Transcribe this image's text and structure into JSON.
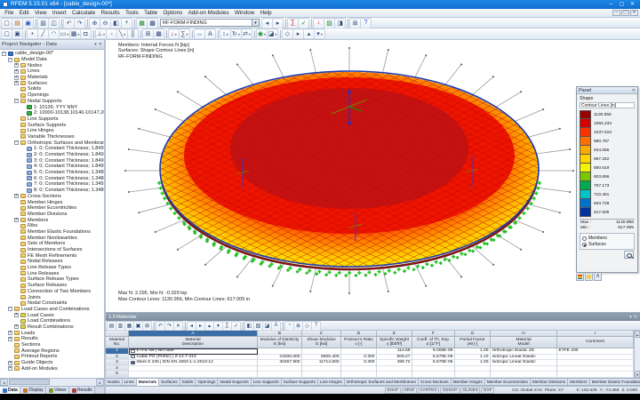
{
  "window": {
    "title": "RFEM 5.15.01 x64 - [cable_design-00*]"
  },
  "menu": [
    "File",
    "Edit",
    "View",
    "Insert",
    "Calculate",
    "Results",
    "Tools",
    "Table",
    "Options",
    "Add-on Modules",
    "Window",
    "Help"
  ],
  "toolbar": {
    "combo_value": "RF-FORM-FINDING",
    "row1_left": [
      {
        "n": "new-file-icon",
        "g": "▢"
      },
      {
        "n": "open-file-icon",
        "g": "▤",
        "c": "warm"
      },
      {
        "n": "save-icon",
        "g": "▣",
        "c": "blue"
      },
      {
        "sep": true
      },
      {
        "n": "print-icon",
        "g": "▥"
      },
      {
        "n": "print-preview-icon",
        "g": "◫"
      },
      {
        "sep": true
      },
      {
        "n": "undo-icon",
        "g": "↶"
      },
      {
        "n": "redo-icon",
        "g": "↷"
      },
      {
        "sep": true
      },
      {
        "n": "zoom-in-icon",
        "g": "⊕"
      },
      {
        "n": "zoom-out-icon",
        "g": "⊖"
      },
      {
        "n": "zoom-window-icon",
        "g": "◧"
      },
      {
        "n": "pan-icon",
        "g": "+"
      },
      {
        "sep": true
      },
      {
        "n": "render-icon",
        "g": "▦",
        "c": "green"
      },
      {
        "n": "wireframe-icon",
        "g": "▩"
      }
    ],
    "row1_right": [
      {
        "n": "previous-icon",
        "g": "◂"
      },
      {
        "n": "next-icon",
        "g": "▸"
      },
      {
        "sep": true
      },
      {
        "n": "calculate-all-icon",
        "g": "∑",
        "c": "red"
      },
      {
        "n": "check-icon",
        "g": "✓",
        "c": "green"
      },
      {
        "sep": true
      },
      {
        "n": "loads-icon",
        "g": "↓",
        "c": "red"
      },
      {
        "n": "results-icon",
        "g": "▨",
        "c": "green"
      },
      {
        "n": "panel-toggle-icon",
        "g": "◨"
      },
      {
        "sep": true
      },
      {
        "n": "tables-icon",
        "g": "⊞"
      },
      {
        "n": "help-icon",
        "g": "?",
        "c": "blue"
      }
    ],
    "row2": [
      {
        "n": "select-icon",
        "g": "▢"
      },
      {
        "n": "deselect-icon",
        "g": "▣"
      },
      {
        "sep": true
      },
      {
        "n": "node-icon",
        "g": "•"
      },
      {
        "n": "line-icon",
        "g": "╱"
      },
      {
        "n": "arc-icon",
        "g": "◠"
      },
      {
        "n": "surface-icon",
        "g": "▭",
        "d": true
      },
      {
        "n": "solid-icon",
        "g": "▦",
        "d": true
      },
      {
        "n": "opening-icon",
        "g": "◘"
      },
      {
        "sep": true
      },
      {
        "n": "support-icon",
        "g": "⊥",
        "d": true
      },
      {
        "n": "hinge-icon",
        "g": "◦"
      },
      {
        "n": "member-icon",
        "g": "╲",
        "d": true
      },
      {
        "n": "rib-icon",
        "g": "║"
      },
      {
        "sep": true
      },
      {
        "n": "mesh-icon",
        "g": "⊞"
      },
      {
        "n": "refinement-icon",
        "g": "▦"
      },
      {
        "sep": true
      },
      {
        "n": "load-case-icon",
        "g": "↓",
        "c": "red",
        "d": true
      },
      {
        "n": "combination-icon",
        "g": "∑",
        "d": true
      },
      {
        "sep": true
      },
      {
        "n": "dimension-icon",
        "g": "↔"
      },
      {
        "n": "text-icon",
        "g": "A"
      },
      {
        "sep": true
      },
      {
        "n": "move-icon",
        "g": "↕",
        "d": true
      },
      {
        "n": "rotate-icon",
        "g": "↻",
        "d": true
      },
      {
        "n": "mirror-icon",
        "g": "⇄",
        "d": true
      },
      {
        "sep": true
      },
      {
        "n": "visibility-icon",
        "g": "◉",
        "c": "green",
        "d": true
      },
      {
        "n": "clip-icon",
        "g": "◪",
        "d": true
      },
      {
        "sep": true
      },
      {
        "n": "view-iso-icon",
        "g": "◇"
      },
      {
        "n": "view-x-icon",
        "g": "▸"
      },
      {
        "n": "view-y-icon",
        "g": "▴"
      },
      {
        "n": "view-z-icon",
        "g": "▾",
        "d": true
      }
    ]
  },
  "navigator": {
    "title": "Project Navigator - Data",
    "tabs": [
      {
        "label": "Data",
        "active": true,
        "chip": "#3a73cd"
      },
      {
        "label": "Display",
        "active": false,
        "chip": "#c87a2a"
      },
      {
        "label": "Views",
        "active": false,
        "chip": "#7a9f3a"
      },
      {
        "label": "Results",
        "active": false,
        "chip": "#aa4444"
      }
    ],
    "tree": [
      {
        "lvl": 0,
        "exp": "-",
        "icon": "root",
        "label": "cable_design-00*"
      },
      {
        "lvl": 1,
        "exp": "-",
        "icon": "folder",
        "label": "Model Data"
      },
      {
        "lvl": 2,
        "exp": "+",
        "icon": "folder",
        "label": "Nodes"
      },
      {
        "lvl": 2,
        "exp": "+",
        "icon": "folder",
        "label": "Lines"
      },
      {
        "lvl": 2,
        "exp": "+",
        "icon": "folder",
        "label": "Materials"
      },
      {
        "lvl": 2,
        "exp": "+",
        "icon": "folder",
        "label": "Surfaces"
      },
      {
        "lvl": 2,
        "exp": ".",
        "icon": "folder",
        "label": "Solids"
      },
      {
        "lvl": 2,
        "exp": ".",
        "icon": "folder",
        "label": "Openings"
      },
      {
        "lvl": 2,
        "exp": "-",
        "icon": "folder",
        "label": "Nodal Supports"
      },
      {
        "lvl": 3,
        "exp": ".",
        "icon": "support",
        "label": "1: 10139, YYY NNY"
      },
      {
        "lvl": 3,
        "exp": ".",
        "icon": "support",
        "label": "2: 10000-10138,10140-10147,20000-2014"
      },
      {
        "lvl": 2,
        "exp": ".",
        "icon": "folder",
        "label": "Line Supports"
      },
      {
        "lvl": 2,
        "exp": ".",
        "icon": "folder",
        "label": "Surface Supports"
      },
      {
        "lvl": 2,
        "exp": ".",
        "icon": "folder",
        "label": "Line Hinges"
      },
      {
        "lvl": 2,
        "exp": ".",
        "icon": "folder",
        "label": "Variable Thicknesses"
      },
      {
        "lvl": 2,
        "exp": "-",
        "icon": "folder",
        "label": "Orthotropic Surfaces and Membranes"
      },
      {
        "lvl": 3,
        "exp": ".",
        "icon": "ortho",
        "label": "1: 0; Constant Thickness; 1.8497E-05, 1..."
      },
      {
        "lvl": 3,
        "exp": ".",
        "icon": "ortho",
        "label": "2: 0; Constant Thickness; 1.8497E-05, 1..."
      },
      {
        "lvl": 3,
        "exp": ".",
        "icon": "ortho",
        "label": "3: 0; Constant Thickness; 1.8497E-05, 1..."
      },
      {
        "lvl": 3,
        "exp": ".",
        "icon": "ortho",
        "label": "4: 0; Constant Thickness; 1.8497E-05, 1..."
      },
      {
        "lvl": 3,
        "exp": ".",
        "icon": "ortho",
        "label": "5: 0; Constant Thickness; 1.3484E-05, 1..."
      },
      {
        "lvl": 3,
        "exp": ".",
        "icon": "ortho",
        "label": "6: 0; Constant Thickness; 1.3484E-05, 1..."
      },
      {
        "lvl": 3,
        "exp": ".",
        "icon": "ortho",
        "label": "7: 0; Constant Thickness; 1.3459E-05, 1..."
      },
      {
        "lvl": 3,
        "exp": ".",
        "icon": "ortho",
        "label": "8: 0; Constant Thickness; 1.3484E-05, 1..."
      },
      {
        "lvl": 2,
        "exp": "+",
        "icon": "folder",
        "label": "Cross-Sections"
      },
      {
        "lvl": 2,
        "exp": ".",
        "icon": "folder",
        "label": "Member Hinges"
      },
      {
        "lvl": 2,
        "exp": ".",
        "icon": "folder",
        "label": "Member Eccentricities"
      },
      {
        "lvl": 2,
        "exp": ".",
        "icon": "folder",
        "label": "Member Divisions"
      },
      {
        "lvl": 2,
        "exp": "+",
        "icon": "folder",
        "label": "Members"
      },
      {
        "lvl": 2,
        "exp": ".",
        "icon": "folder",
        "label": "Ribs"
      },
      {
        "lvl": 2,
        "exp": ".",
        "icon": "folder",
        "label": "Member Elastic Foundations"
      },
      {
        "lvl": 2,
        "exp": ".",
        "icon": "folder",
        "label": "Member Nonlinearities"
      },
      {
        "lvl": 2,
        "exp": ".",
        "icon": "folder",
        "label": "Sets of Members"
      },
      {
        "lvl": 2,
        "exp": ".",
        "icon": "folder",
        "label": "Intersections of Surfaces"
      },
      {
        "lvl": 2,
        "exp": ".",
        "icon": "folder",
        "label": "FE Mesh Refinements"
      },
      {
        "lvl": 2,
        "exp": ".",
        "icon": "folder",
        "label": "Nodal Releases"
      },
      {
        "lvl": 2,
        "exp": ".",
        "icon": "folder",
        "label": "Line Release Types"
      },
      {
        "lvl": 2,
        "exp": ".",
        "icon": "folder",
        "label": "Line Releases"
      },
      {
        "lvl": 2,
        "exp": ".",
        "icon": "folder",
        "label": "Surface Release Types"
      },
      {
        "lvl": 2,
        "exp": ".",
        "icon": "folder",
        "label": "Surface Releases"
      },
      {
        "lvl": 2,
        "exp": ".",
        "icon": "folder",
        "label": "Connection of Two Members"
      },
      {
        "lvl": 2,
        "exp": ".",
        "icon": "folder",
        "label": "Joints"
      },
      {
        "lvl": 2,
        "exp": ".",
        "icon": "folder",
        "label": "Nodal Constraints"
      },
      {
        "lvl": 1,
        "exp": "-",
        "icon": "folder",
        "label": "Load Cases and Combinations"
      },
      {
        "lvl": 2,
        "exp": "+",
        "icon": "lc",
        "label": "Load Cases"
      },
      {
        "lvl": 2,
        "exp": ".",
        "icon": "lc",
        "label": "Load Combinations"
      },
      {
        "lvl": 2,
        "exp": "+",
        "icon": "lc",
        "label": "Result Combinations"
      },
      {
        "lvl": 1,
        "exp": "+",
        "icon": "folder",
        "label": "Loads"
      },
      {
        "lvl": 1,
        "exp": "+",
        "icon": "folder",
        "label": "Results"
      },
      {
        "lvl": 1,
        "exp": ".",
        "icon": "folder",
        "label": "Sections"
      },
      {
        "lvl": 1,
        "exp": ".",
        "icon": "folder",
        "label": "Average Regions"
      },
      {
        "lvl": 1,
        "exp": ".",
        "icon": "folder",
        "label": "Printout Reports"
      },
      {
        "lvl": 1,
        "exp": "+",
        "icon": "folder",
        "label": "Guide Objects"
      },
      {
        "lvl": 1,
        "exp": "+",
        "icon": "folder",
        "label": "Add-on Modules"
      }
    ]
  },
  "viewport": {
    "info_lines": [
      "Members: Internal Forces N [kip]",
      "Surfaces: Shape Contour Lines [in]",
      "RF-FORM-FINDING"
    ],
    "result_lines": [
      "Max N: 2.295, Min N: -0.029 kip",
      "Max Contour Lines: 1130.956, Min Contour Lines: 617.005 in"
    ]
  },
  "panel": {
    "title": "Panel",
    "shape_label": "Shape",
    "scale_label": "Contour Lines [in]",
    "scale": [
      {
        "color": "#9b0000",
        "value": "1130.956"
      },
      {
        "color": "#d40000",
        "value": "1084.233"
      },
      {
        "color": "#fa3200",
        "value": "1037.510"
      },
      {
        "color": "#ff6e00",
        "value": "990.787"
      },
      {
        "color": "#ffaa00",
        "value": "944.065"
      },
      {
        "color": "#ffd400",
        "value": "897.342"
      },
      {
        "color": "#f4f400",
        "value": "850.619"
      },
      {
        "color": "#7cc800",
        "value": "803.896"
      },
      {
        "color": "#00aa50",
        "value": "757.173"
      },
      {
        "color": "#00c3c3",
        "value": "710.451"
      },
      {
        "color": "#0073cf",
        "value": "663.728"
      },
      {
        "color": "#0032a0",
        "value": "617.005"
      }
    ],
    "max_label": "Max :",
    "max_value": "1130.956",
    "min_label": "Min :",
    "min_value": "617.005",
    "options": [
      {
        "label": "Members",
        "selected": false
      },
      {
        "label": "Surfaces",
        "selected": true
      }
    ]
  },
  "table": {
    "title": "1.3 Materials",
    "letters": [
      "",
      "A",
      "B",
      "C",
      "D",
      "E",
      "F",
      "G",
      "H",
      "I"
    ],
    "selected_letter": "A",
    "columns": [
      {
        "name": "Material",
        "unit": "No."
      },
      {
        "name": "Material",
        "unit": "Description"
      },
      {
        "name": "Modulus of Elasticity",
        "unit": "E [ksi]"
      },
      {
        "name": "Shear Modulus",
        "unit": "G [ksi]"
      },
      {
        "name": "Poisson's Ratio",
        "unit": "ν [-]"
      },
      {
        "name": "Specific Weight",
        "unit": "γ [lbf/ft³]"
      },
      {
        "name": "Coeff. of Th. Exp.",
        "unit": "α [1/°F]"
      },
      {
        "name": "Partial Factor",
        "unit": "γM [-]"
      },
      {
        "name": "Material",
        "unit": "Model"
      },
      {
        "name": "Comment",
        "unit": ""
      }
    ],
    "rows": [
      {
        "no": "1",
        "swatch": "#fcfcfc",
        "selected": true,
        "cells": [
          "ETFE foil | No code",
          "",
          "",
          "",
          "114.59",
          "9.000E-06",
          "1.00",
          "Orthotropic Elastic 2D",
          "ETFE 200"
        ]
      },
      {
        "no": "2",
        "swatch": "#dce6f0",
        "selected": false,
        "cells": [
          "Cable PG (Prefer) | Z-14.7-413",
          "23206.000",
          "8925.400",
          "0.300",
          "509.27",
          "6.670E-06",
          "1.10",
          "Isotropic Linear Elastic",
          ""
        ]
      },
      {
        "no": "3",
        "swatch": "#2f5fb0",
        "selected": false,
        "cells": [
          "Steel S 235 | DIN EN 1993-1-1-2010-12",
          "30457.900",
          "11714.600",
          "0.300",
          "499.72",
          "6.670E-06",
          "1.00",
          "Isotropic Linear Elastic",
          ""
        ]
      },
      {
        "no": "4",
        "swatch": "",
        "selected": false,
        "cells": [
          "",
          "",
          "",
          "",
          "",
          "",
          "",
          "",
          ""
        ]
      },
      {
        "no": "5",
        "swatch": "",
        "selected": false,
        "cells": [
          "",
          "",
          "",
          "",
          "",
          "",
          "",
          "",
          ""
        ]
      }
    ]
  },
  "sheet_tabs": {
    "active": "Materials",
    "tabs": [
      "Nodes",
      "Lines",
      "Materials",
      "Surfaces",
      "Solids",
      "Openings",
      "Nodal Supports",
      "Line Supports",
      "Surface Supports",
      "Line Hinges",
      "Orthotropic Surfaces and Membranes",
      "Cross-Sections",
      "Member Hinges",
      "Member Eccentricities",
      "Member Divisions",
      "Members",
      "Member Elastic Foundations",
      "Member Nonlinearities"
    ]
  },
  "status": {
    "toggles": [
      "SNAP",
      "GRID",
      "CARTES",
      "OSNAP",
      "GLINES",
      "DXF"
    ],
    "cs": "CS: Global XYZ",
    "plane": "Plane: XY",
    "x": "X: 192.639",
    "y": "Y: -74.369",
    "z": "Z: 0.009",
    "workplane": "Workplane"
  }
}
